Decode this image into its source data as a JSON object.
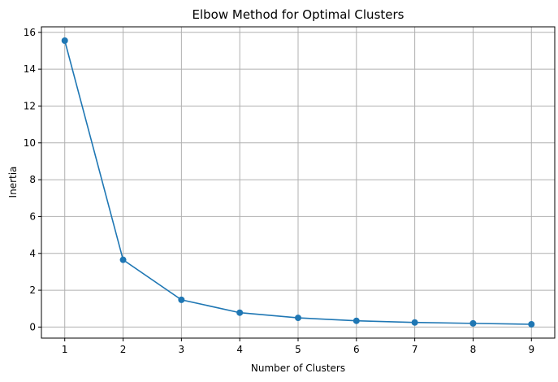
{
  "chart_data": {
    "type": "line",
    "title": "Elbow Method for Optimal Clusters",
    "xlabel": "Number of Clusters",
    "ylabel": "Inertia",
    "x": [
      1,
      2,
      3,
      4,
      5,
      6,
      7,
      8,
      9
    ],
    "series": [
      {
        "values": [
          15.55,
          3.65,
          1.48,
          0.78,
          0.5,
          0.34,
          0.25,
          0.2,
          0.15
        ],
        "color": "#1f77b4",
        "marker": "circle"
      }
    ],
    "xticks": [
      "1",
      "2",
      "3",
      "4",
      "5",
      "6",
      "7",
      "8",
      "9"
    ],
    "yticks": [
      "0",
      "2",
      "4",
      "6",
      "8",
      "10",
      "12",
      "14",
      "16"
    ],
    "xlim": [
      0.6,
      9.4
    ],
    "ylim": [
      -0.6,
      16.3
    ],
    "grid": true
  }
}
